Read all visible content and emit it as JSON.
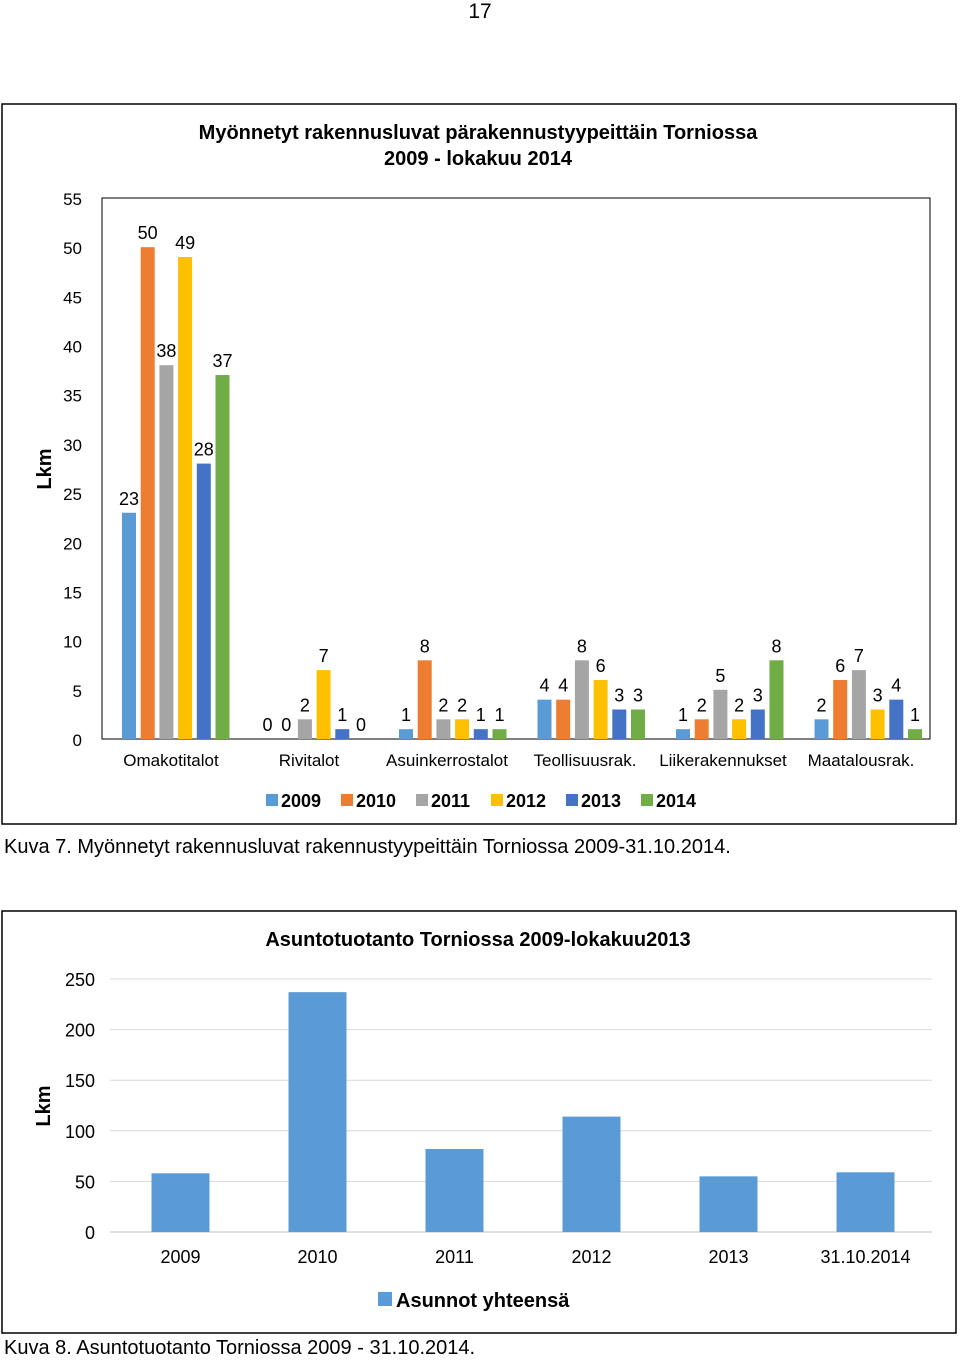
{
  "page": {
    "number": "17"
  },
  "chart_data": [
    {
      "type": "bar",
      "title": "Myönnetyt rakennusluvat pärakennustyypeittäin Torniossa",
      "subtitle": "2009 - lokakuu 2014",
      "ylabel": "Lkm",
      "xlabel": "",
      "ylim": [
        0,
        55
      ],
      "yticks": [
        0,
        5,
        10,
        15,
        20,
        25,
        30,
        35,
        40,
        45,
        50,
        55
      ],
      "grid": true,
      "legend_position": "bottom",
      "categories": [
        "Omakotitalot",
        "Rivitalot",
        "Asuinkerrostalot",
        "Teollisuusrak.",
        "Liikerakennukset",
        "Maatalousrak."
      ],
      "series": [
        {
          "name": "2009",
          "color": "#5b9bd5",
          "values": [
            23,
            0,
            1,
            4,
            1,
            2
          ]
        },
        {
          "name": "2010",
          "color": "#ed7d31",
          "values": [
            50,
            0,
            8,
            4,
            2,
            6
          ]
        },
        {
          "name": "2011",
          "color": "#a5a5a5",
          "values": [
            38,
            2,
            2,
            8,
            5,
            7
          ]
        },
        {
          "name": "2012",
          "color": "#ffc000",
          "values": [
            49,
            7,
            2,
            6,
            2,
            3
          ]
        },
        {
          "name": "2013",
          "color": "#4472c4",
          "values": [
            28,
            1,
            1,
            3,
            3,
            4
          ]
        },
        {
          "name": "2014",
          "color": "#70ad47",
          "values": [
            37,
            0,
            1,
            3,
            8,
            1
          ]
        }
      ]
    },
    {
      "type": "bar",
      "title": "Asuntotuotanto Torniossa 2009-lokakuu2013",
      "ylabel": "Lkm",
      "xlabel": "",
      "ylim": [
        0,
        250
      ],
      "yticks": [
        0,
        50,
        100,
        150,
        200,
        250
      ],
      "grid": true,
      "legend_position": "bottom",
      "categories": [
        "2009",
        "2010",
        "2011",
        "2012",
        "2013",
        "31.10.2014"
      ],
      "series": [
        {
          "name": "Asunnot yhteensä",
          "color": "#5b9bd5",
          "values": [
            58,
            237,
            82,
            114,
            55,
            59
          ]
        }
      ]
    }
  ],
  "captions": {
    "figure1": "Kuva 7. Myönnetyt rakennusluvat rakennustyypeittäin Torniossa 2009-31.10.2014.",
    "figure2": "Kuva 8. Asuntotuotanto Torniossa 2009 - 31.10.2014."
  }
}
